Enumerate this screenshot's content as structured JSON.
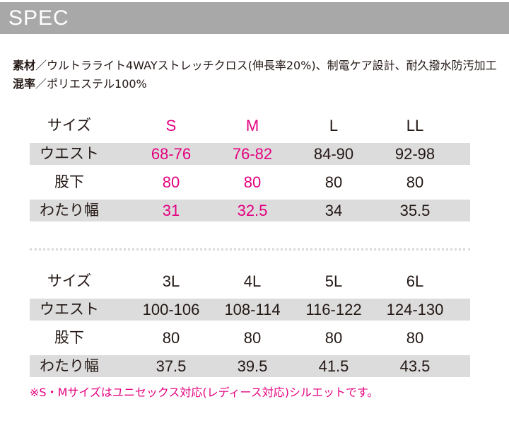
{
  "header": {
    "title": "SPEC"
  },
  "materials": [
    {
      "label": "素材",
      "text": "／ウルトラライト4WAYストレッチクロス(伸長率20%)、制電ケア設計、耐久撥水防汚加工"
    },
    {
      "label": "混率",
      "text": "／ポリエステル100%"
    }
  ],
  "tables": [
    {
      "rows": [
        [
          "サイズ",
          "S",
          "M",
          "L",
          "LL"
        ],
        [
          "ウエスト",
          "68-76",
          "76-82",
          "84-90",
          "92-98"
        ],
        [
          "股下",
          "80",
          "80",
          "80",
          "80"
        ],
        [
          "わたり幅",
          "31",
          "32.5",
          "34",
          "35.5"
        ]
      ]
    },
    {
      "rows": [
        [
          "サイズ",
          "3L",
          "4L",
          "5L",
          "6L"
        ],
        [
          "ウエスト",
          "100-106",
          "108-114",
          "116-122",
          "124-130"
        ],
        [
          "股下",
          "80",
          "80",
          "80",
          "80"
        ],
        [
          "わたり幅",
          "37.5",
          "39.5",
          "41.5",
          "43.5"
        ]
      ]
    }
  ],
  "note": "※S・Mサイズはユニセックス対応(レディース対応)シルエットです。"
}
